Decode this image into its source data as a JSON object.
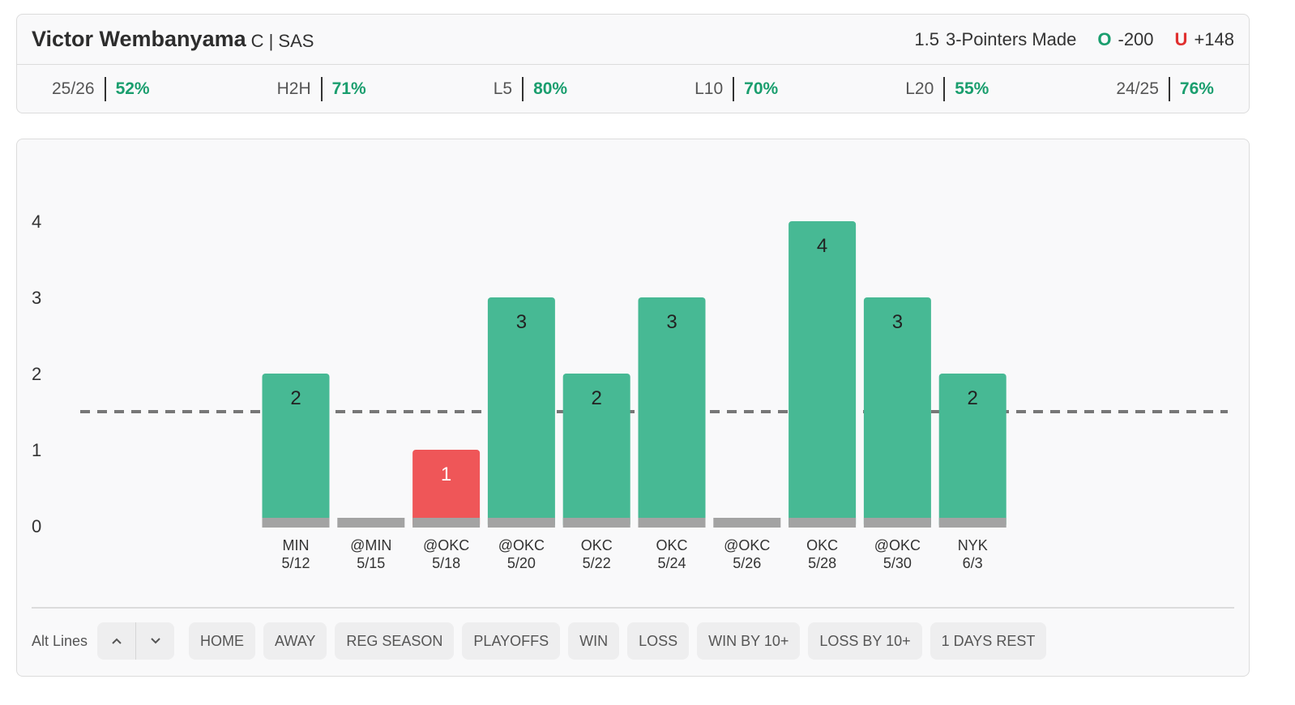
{
  "header": {
    "player": "Victor Wembanyama",
    "position": "C | SAS",
    "market": "3-Pointers Made",
    "over_mark": "O",
    "over_odds": "-200",
    "under_mark": "U",
    "under_odds": "+148"
  },
  "stats": [
    {
      "label": "25/26",
      "value": "52%"
    },
    {
      "label": "H2H",
      "value": "71%"
    },
    {
      "label": "L5",
      "value": "80%"
    },
    {
      "label": "L10",
      "value": "70%"
    },
    {
      "label": "L20",
      "value": "55%"
    },
    {
      "label": "24/25",
      "value": "76%"
    }
  ],
  "chart_data": {
    "type": "bar",
    "line": 1.5,
    "categories": [
      "MIN",
      "@MIN",
      "@OKC",
      "@OKC",
      "OKC",
      "OKC",
      "@OKC",
      "OKC",
      "@OKC",
      "NYK"
    ],
    "dates": [
      "5/12",
      "5/15",
      "5/18",
      "5/20",
      "5/22",
      "5/24",
      "5/26",
      "5/28",
      "5/30",
      "6/3"
    ],
    "values": [
      2,
      0,
      1,
      3,
      2,
      3,
      0,
      4,
      3,
      2
    ],
    "over_color": "#47b994",
    "under_color": "#ef5658",
    "base_color": "#a3a3a3",
    "ylim": [
      0,
      4
    ],
    "yticks": [
      0,
      1,
      2,
      3,
      4
    ]
  },
  "footer": {
    "alt_lines": "Alt Lines",
    "filters": [
      "HOME",
      "AWAY",
      "REG SEASON",
      "PLAYOFFS",
      "WIN",
      "LOSS",
      "WIN BY 10+",
      "LOSS BY 10+",
      "1 DAYS REST"
    ]
  }
}
